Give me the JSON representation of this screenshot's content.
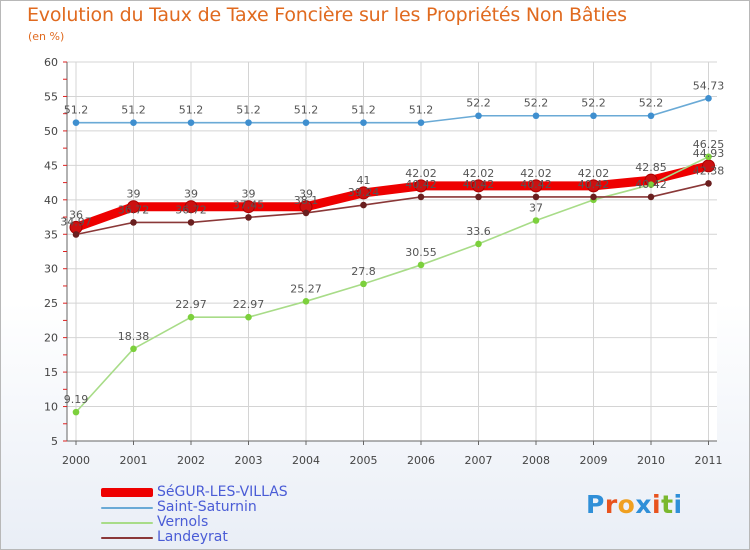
{
  "title": "Evolution du Taux de Taxe Foncière sur les Propriétés Non Bâties",
  "subtitle": "(en %)",
  "brand": {
    "letters": [
      "P",
      "r",
      "o",
      "x",
      "i",
      "t",
      "i"
    ],
    "colors": [
      "#2f8fd8",
      "#e8531e",
      "#f0a020",
      "#2f8fd8",
      "#e8531e",
      "#7ab82e",
      "#2f8fd8"
    ]
  },
  "chart_data": {
    "type": "line",
    "title": "Evolution du Taux de Taxe Foncière sur les Propriétés Non Bâties",
    "ylabel": "(en %)",
    "xlabel": "",
    "x": [
      "2000",
      "2001",
      "2002",
      "2003",
      "2004",
      "2005",
      "2006",
      "2007",
      "2008",
      "2009",
      "2010",
      "2011"
    ],
    "ylim": [
      5,
      60
    ],
    "yticks": [
      "5",
      "10",
      "15",
      "20",
      "25",
      "30",
      "35",
      "40",
      "45",
      "50",
      "55",
      "60"
    ],
    "grid": true,
    "legend_position": "bottom-left",
    "series": [
      {
        "name": "SéGUR-LES-VILLAS",
        "color": "#ee0000",
        "marker_color": "#cc1111",
        "values": [
          36,
          39,
          39,
          39,
          39,
          41,
          42.02,
          42.02,
          42.02,
          42.02,
          42.85,
          44.93
        ],
        "labels": [
          "36",
          "39",
          "39",
          "39",
          "39",
          "41",
          "42.02",
          "42.02",
          "42.02",
          "42.02",
          "42.85",
          "44.93"
        ]
      },
      {
        "name": "Saint-Saturnin",
        "color": "#6aaad6",
        "marker_color": "#3f8fcf",
        "values": [
          51.2,
          51.2,
          51.2,
          51.2,
          51.2,
          51.2,
          51.2,
          52.2,
          52.2,
          52.2,
          52.2,
          54.73
        ],
        "labels": [
          "51.2",
          "51.2",
          "51.2",
          "51.2",
          "51.2",
          "51.2",
          "51.2",
          "52.2",
          "52.2",
          "52.2",
          "52.2",
          "54.73"
        ]
      },
      {
        "name": "Vernols",
        "color": "#a8dc88",
        "marker_color": "#7cd03c",
        "values": [
          9.19,
          18.38,
          22.97,
          22.97,
          25.27,
          27.8,
          30.55,
          33.6,
          37,
          40,
          42.2,
          46.25
        ],
        "labels": [
          "9.19",
          "18.38",
          "22.97",
          "22.97",
          "25.27",
          "27.8",
          "30.55",
          "33.6",
          "37",
          "",
          "",
          "46.25"
        ]
      },
      {
        "name": "Landeyrat",
        "color": "#8a3838",
        "marker_color": "#6a1f1f",
        "values": [
          34.97,
          36.72,
          36.72,
          37.45,
          38.1,
          39.24,
          40.42,
          40.42,
          40.42,
          40.42,
          40.42,
          42.38
        ],
        "labels": [
          "34.97",
          "36.72",
          "36.72",
          "37.45",
          "38.1",
          "39.24",
          "40.42",
          "40.42",
          "40.42",
          "40.42",
          "40.42",
          "42.38"
        ]
      }
    ]
  }
}
